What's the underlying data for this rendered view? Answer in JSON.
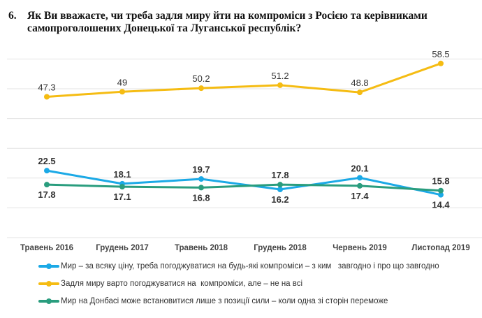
{
  "title": {
    "number": "6.",
    "text": "Як Ви вважаєте, чи треба задля миру йти на компроміси з Росією та керівниками самопроголошених Донецької та Луганської республік?"
  },
  "chart_data": {
    "type": "line",
    "categories": [
      "Травень 2016",
      "Грудень 2017",
      "Травень 2018",
      "Грудень 2018",
      "Червень 2019",
      "Листопад 2019"
    ],
    "ylim": [
      0,
      60
    ],
    "grid": true,
    "legend_placement": "bottom",
    "series": [
      {
        "name": "Мир – за всяку ціну, треба погоджуватися на будь-які компроміси – з ким   завгодно і про що завгодно",
        "color": "#1BA9E6",
        "values": [
          22.5,
          18.1,
          19.7,
          16.2,
          20.1,
          14.4
        ],
        "labels": [
          "22.5",
          "18.1",
          "19.7",
          "16.2",
          "20.1",
          "14.4"
        ]
      },
      {
        "name": "Задля миру варто погоджуватися на  компроміси, але – не на всі",
        "color": "#F5BC13",
        "values": [
          47.3,
          49,
          50.2,
          51.2,
          48.8,
          58.5
        ],
        "labels": [
          "47.3",
          "49",
          "50.2",
          "51.2",
          "48.8",
          "58.5"
        ]
      },
      {
        "name": "Мир на Донбасі може встановитися лише з позиції сили – коли одна зі сторін переможе",
        "color": "#2A9D7E",
        "values": [
          17.8,
          17.1,
          16.8,
          17.8,
          17.4,
          15.8
        ],
        "labels": [
          "17.8",
          "17.1",
          "16.8",
          "17.8",
          "17.4",
          "15.8"
        ]
      }
    ]
  }
}
